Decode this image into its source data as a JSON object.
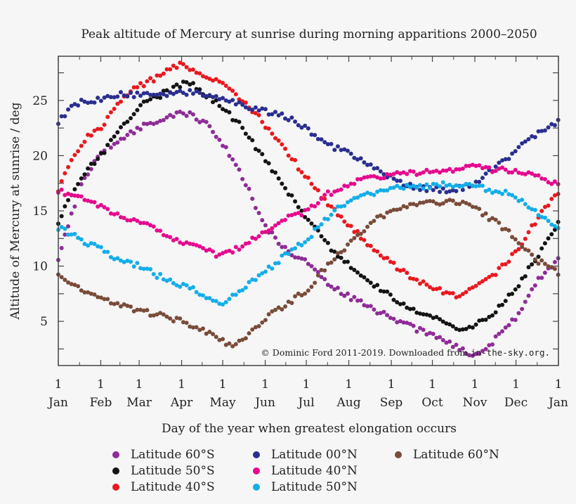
{
  "chart_data": {
    "type": "scatter",
    "title": "Peak altitude of Mercury at sunrise during morning apparitions 2000–2050",
    "xlabel": "Day of the year when greatest elongation occurs",
    "ylabel": "Altitude of Mercury at sunrise / deg",
    "xlim": [
      0,
      365
    ],
    "ylim": [
      1,
      29
    ],
    "yticks": [
      5,
      10,
      15,
      20,
      25
    ],
    "xtick_days": [
      0,
      31,
      59,
      90,
      120,
      151,
      181,
      212,
      243,
      273,
      304,
      334,
      365
    ],
    "xtick_day_label": "1",
    "xtick_months": [
      "Jan",
      "Feb",
      "Mar",
      "Apr",
      "May",
      "Jun",
      "Jul",
      "Aug",
      "Sep",
      "Oct",
      "Nov",
      "Dec",
      "Jan"
    ],
    "credit": "© Dominic Ford 2011-2019. Downloaded from",
    "credit_site": "in-the-sky.org.",
    "legend_placement": "bottom",
    "series": [
      {
        "name": "Latitude 60°S",
        "color": "#8e2c96",
        "points": [
          [
            0,
            10.8
          ],
          [
            9,
            14.5
          ],
          [
            19,
            18
          ],
          [
            31,
            20.3
          ],
          [
            45,
            21.5
          ],
          [
            59,
            22.5
          ],
          [
            75,
            23.3
          ],
          [
            90,
            24
          ],
          [
            100,
            23.5
          ],
          [
            110,
            22.8
          ],
          [
            120,
            21
          ],
          [
            135,
            18
          ],
          [
            151,
            13.5
          ],
          [
            166,
            11.5
          ],
          [
            181,
            10.3
          ],
          [
            196,
            8.5
          ],
          [
            212,
            7.2
          ],
          [
            243,
            5.3
          ],
          [
            273,
            3.7
          ],
          [
            300,
            2.1
          ],
          [
            306,
            1.8
          ],
          [
            320,
            3.5
          ],
          [
            334,
            5.4
          ],
          [
            350,
            8.8
          ],
          [
            365,
            10.5
          ]
        ]
      },
      {
        "name": "Latitude 50°S",
        "color": "#141414",
        "points": [
          [
            0,
            14
          ],
          [
            10,
            16.5
          ],
          [
            20,
            18.5
          ],
          [
            31,
            20
          ],
          [
            45,
            22.5
          ],
          [
            59,
            24.5
          ],
          [
            75,
            25.5
          ],
          [
            90,
            26.5
          ],
          [
            95,
            26.6
          ],
          [
            105,
            25.8
          ],
          [
            120,
            24.3
          ],
          [
            135,
            22.5
          ],
          [
            151,
            19.5
          ],
          [
            166,
            17
          ],
          [
            181,
            14.4
          ],
          [
            196,
            12
          ],
          [
            212,
            10.1
          ],
          [
            228,
            8.5
          ],
          [
            243,
            7.2
          ],
          [
            258,
            6.2
          ],
          [
            273,
            5.4
          ],
          [
            295,
            4.3
          ],
          [
            304,
            4.6
          ],
          [
            320,
            6
          ],
          [
            334,
            8
          ],
          [
            350,
            11
          ],
          [
            365,
            14
          ]
        ]
      },
      {
        "name": "Latitude 40°S",
        "color": "#e8191f",
        "points": [
          [
            0,
            17
          ],
          [
            10,
            19.5
          ],
          [
            20,
            21.5
          ],
          [
            31,
            22.5
          ],
          [
            45,
            25
          ],
          [
            59,
            26.3
          ],
          [
            75,
            27.3
          ],
          [
            90,
            28.3
          ],
          [
            100,
            27.8
          ],
          [
            110,
            27
          ],
          [
            120,
            26.5
          ],
          [
            135,
            25
          ],
          [
            151,
            22.8
          ],
          [
            166,
            20.5
          ],
          [
            181,
            18
          ],
          [
            196,
            15.8
          ],
          [
            212,
            13.7
          ],
          [
            228,
            11.8
          ],
          [
            243,
            10.3
          ],
          [
            258,
            9
          ],
          [
            273,
            8
          ],
          [
            290,
            7.3
          ],
          [
            304,
            8
          ],
          [
            320,
            9.5
          ],
          [
            334,
            11.3
          ],
          [
            350,
            14.4
          ],
          [
            365,
            16.8
          ]
        ]
      },
      {
        "name": "Latitude 00°N",
        "color": "#2b2e8f",
        "points": [
          [
            0,
            23
          ],
          [
            10,
            24.5
          ],
          [
            20,
            25
          ],
          [
            31,
            25
          ],
          [
            45,
            25.5
          ],
          [
            59,
            25.5
          ],
          [
            75,
            25.5
          ],
          [
            90,
            25.8
          ],
          [
            105,
            25.5
          ],
          [
            120,
            25.3
          ],
          [
            135,
            24.5
          ],
          [
            151,
            24
          ],
          [
            166,
            23.5
          ],
          [
            181,
            22.5
          ],
          [
            196,
            21
          ],
          [
            212,
            20.3
          ],
          [
            228,
            19
          ],
          [
            243,
            18
          ],
          [
            258,
            17.2
          ],
          [
            273,
            16.9
          ],
          [
            290,
            16.9
          ],
          [
            304,
            17.5
          ],
          [
            320,
            19
          ],
          [
            334,
            20.5
          ],
          [
            350,
            22
          ],
          [
            365,
            23.2
          ]
        ]
      },
      {
        "name": "Latitude 40°N",
        "color": "#e6088e",
        "points": [
          [
            0,
            16.8
          ],
          [
            15,
            16.2
          ],
          [
            31,
            15.3
          ],
          [
            45,
            14.6
          ],
          [
            59,
            14
          ],
          [
            75,
            13
          ],
          [
            90,
            12.2
          ],
          [
            105,
            11.5
          ],
          [
            115,
            11.1
          ],
          [
            130,
            11.5
          ],
          [
            151,
            13
          ],
          [
            166,
            14.3
          ],
          [
            181,
            15
          ],
          [
            196,
            16.5
          ],
          [
            212,
            17.5
          ],
          [
            228,
            18
          ],
          [
            243,
            18.2
          ],
          [
            258,
            18.4
          ],
          [
            273,
            18.6
          ],
          [
            290,
            18.8
          ],
          [
            304,
            19
          ],
          [
            320,
            18.7
          ],
          [
            334,
            18.6
          ],
          [
            350,
            18
          ],
          [
            365,
            17.3
          ]
        ]
      },
      {
        "name": "Latitude 50°N",
        "color": "#13aee8",
        "points": [
          [
            0,
            13.5
          ],
          [
            15,
            12.5
          ],
          [
            31,
            11.5
          ],
          [
            45,
            10.5
          ],
          [
            59,
            10
          ],
          [
            75,
            9
          ],
          [
            90,
            8.3
          ],
          [
            105,
            7.5
          ],
          [
            117,
            6.5
          ],
          [
            130,
            7.5
          ],
          [
            151,
            9.5
          ],
          [
            166,
            11
          ],
          [
            181,
            12.3
          ],
          [
            196,
            14.3
          ],
          [
            212,
            16
          ],
          [
            228,
            16.5
          ],
          [
            243,
            17
          ],
          [
            258,
            17.2
          ],
          [
            273,
            17.3
          ],
          [
            290,
            17.4
          ],
          [
            304,
            17.2
          ],
          [
            320,
            16.8
          ],
          [
            334,
            16.3
          ],
          [
            350,
            14.8
          ],
          [
            365,
            13.5
          ]
        ]
      },
      {
        "name": "Latitude 60°N",
        "color": "#7a4b3a",
        "points": [
          [
            0,
            9
          ],
          [
            15,
            8
          ],
          [
            31,
            7
          ],
          [
            45,
            6.4
          ],
          [
            59,
            6
          ],
          [
            75,
            5.5
          ],
          [
            90,
            5
          ],
          [
            105,
            4.3
          ],
          [
            120,
            3.2
          ],
          [
            128,
            2.8
          ],
          [
            140,
            3.8
          ],
          [
            151,
            5.3
          ],
          [
            166,
            6.5
          ],
          [
            181,
            7.8
          ],
          [
            196,
            10
          ],
          [
            212,
            12
          ],
          [
            228,
            14
          ],
          [
            243,
            15
          ],
          [
            258,
            15.5
          ],
          [
            273,
            15.8
          ],
          [
            290,
            15.9
          ],
          [
            304,
            15.2
          ],
          [
            320,
            14
          ],
          [
            334,
            12.5
          ],
          [
            350,
            10.5
          ],
          [
            365,
            9.3
          ]
        ]
      }
    ]
  }
}
